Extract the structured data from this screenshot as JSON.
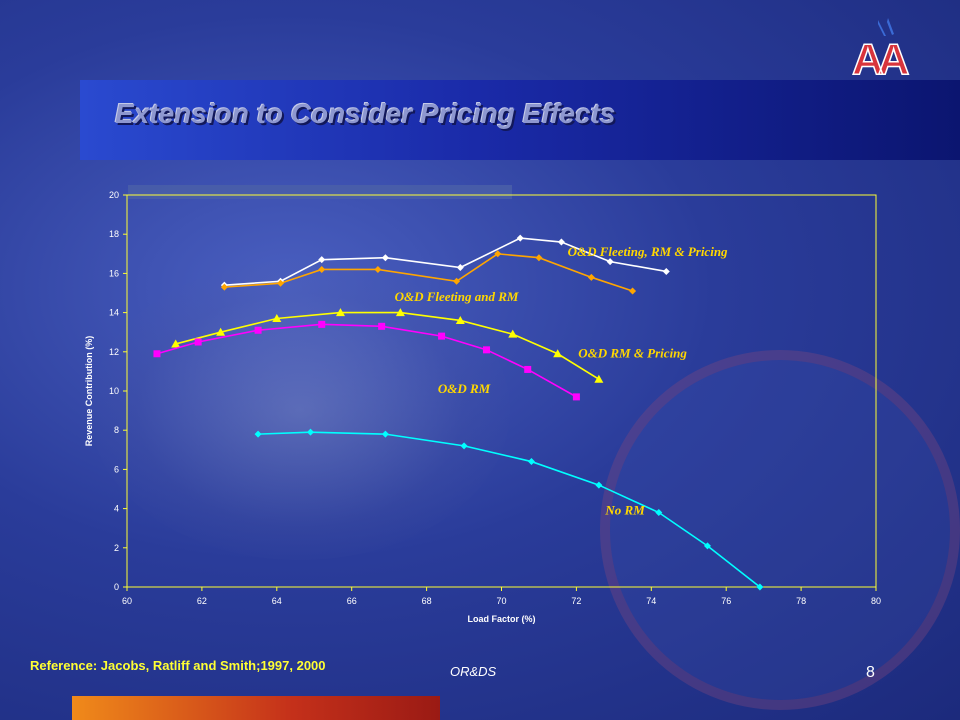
{
  "slide": {
    "title": "Extension to Consider Pricing Effects",
    "logo_text": "AA",
    "reference": "Reference: Jacobs, Ratliff and Smith;1997, 2000",
    "footer_center": "OR&DS",
    "page_number": "8"
  },
  "colors": {
    "title_text": "#8d97d0",
    "axis": "#ffff33",
    "annotation": "#ffd700",
    "reference": "#ffff33"
  },
  "chart_data": {
    "type": "line",
    "xlabel": "Load Factor (%)",
    "ylabel": "Revenue Contribution (%)",
    "xlim": [
      60,
      80
    ],
    "ylim": [
      0,
      20
    ],
    "xticks": [
      60,
      62,
      64,
      66,
      68,
      70,
      72,
      74,
      76,
      78,
      80
    ],
    "yticks": [
      0,
      2,
      4,
      6,
      8,
      10,
      12,
      14,
      16,
      18,
      20
    ],
    "grid": false,
    "series": [
      {
        "name": "O&D Fleeting, RM & Pricing",
        "color": "#ffffff",
        "marker": "diamond",
        "x": [
          62.6,
          64.1,
          65.2,
          66.9,
          68.9,
          70.5,
          71.6,
          72.9,
          74.4
        ],
        "y": [
          15.4,
          15.6,
          16.7,
          16.8,
          16.3,
          17.8,
          17.6,
          16.6,
          16.1
        ]
      },
      {
        "name": "O&D Fleeting and RM",
        "color": "#ffa500",
        "marker": "diamond",
        "x": [
          62.6,
          64.1,
          65.2,
          66.7,
          68.8,
          69.9,
          71.0,
          72.4,
          73.5
        ],
        "y": [
          15.3,
          15.5,
          16.2,
          16.2,
          15.6,
          17.0,
          16.8,
          15.8,
          15.1
        ]
      },
      {
        "name": "O&D RM & Pricing",
        "color": "#ffff00",
        "marker": "triangle",
        "x": [
          61.3,
          62.5,
          64.0,
          65.7,
          67.3,
          68.9,
          70.3,
          71.5,
          72.6
        ],
        "y": [
          12.4,
          13.0,
          13.7,
          14.0,
          14.0,
          13.6,
          12.9,
          11.9,
          10.6
        ]
      },
      {
        "name": "O&D RM",
        "color": "#ff00ff",
        "marker": "square",
        "x": [
          60.8,
          61.9,
          63.5,
          65.2,
          66.8,
          68.4,
          69.6,
          70.7,
          72.0
        ],
        "y": [
          11.9,
          12.5,
          13.1,
          13.4,
          13.3,
          12.8,
          12.1,
          11.1,
          9.7
        ]
      },
      {
        "name": "No RM",
        "color": "#00ffff",
        "marker": "diamond",
        "x": [
          63.5,
          64.9,
          66.9,
          69.0,
          70.8,
          72.6,
          74.2,
          75.5,
          76.9
        ],
        "y": [
          7.8,
          7.9,
          7.8,
          7.2,
          6.4,
          5.2,
          3.8,
          2.1,
          0.0
        ]
      }
    ],
    "annotations": [
      {
        "text": "O&D Fleeting, RM & Pricing",
        "x": 73.9,
        "y": 16.9
      },
      {
        "text": "O&D Fleeting and RM",
        "x": 68.8,
        "y": 14.6
      },
      {
        "text": "O&D RM & Pricing",
        "x": 73.5,
        "y": 11.7
      },
      {
        "text": "O&D RM",
        "x": 69.0,
        "y": 9.9
      },
      {
        "text": "No RM",
        "x": 73.3,
        "y": 3.7
      }
    ]
  }
}
